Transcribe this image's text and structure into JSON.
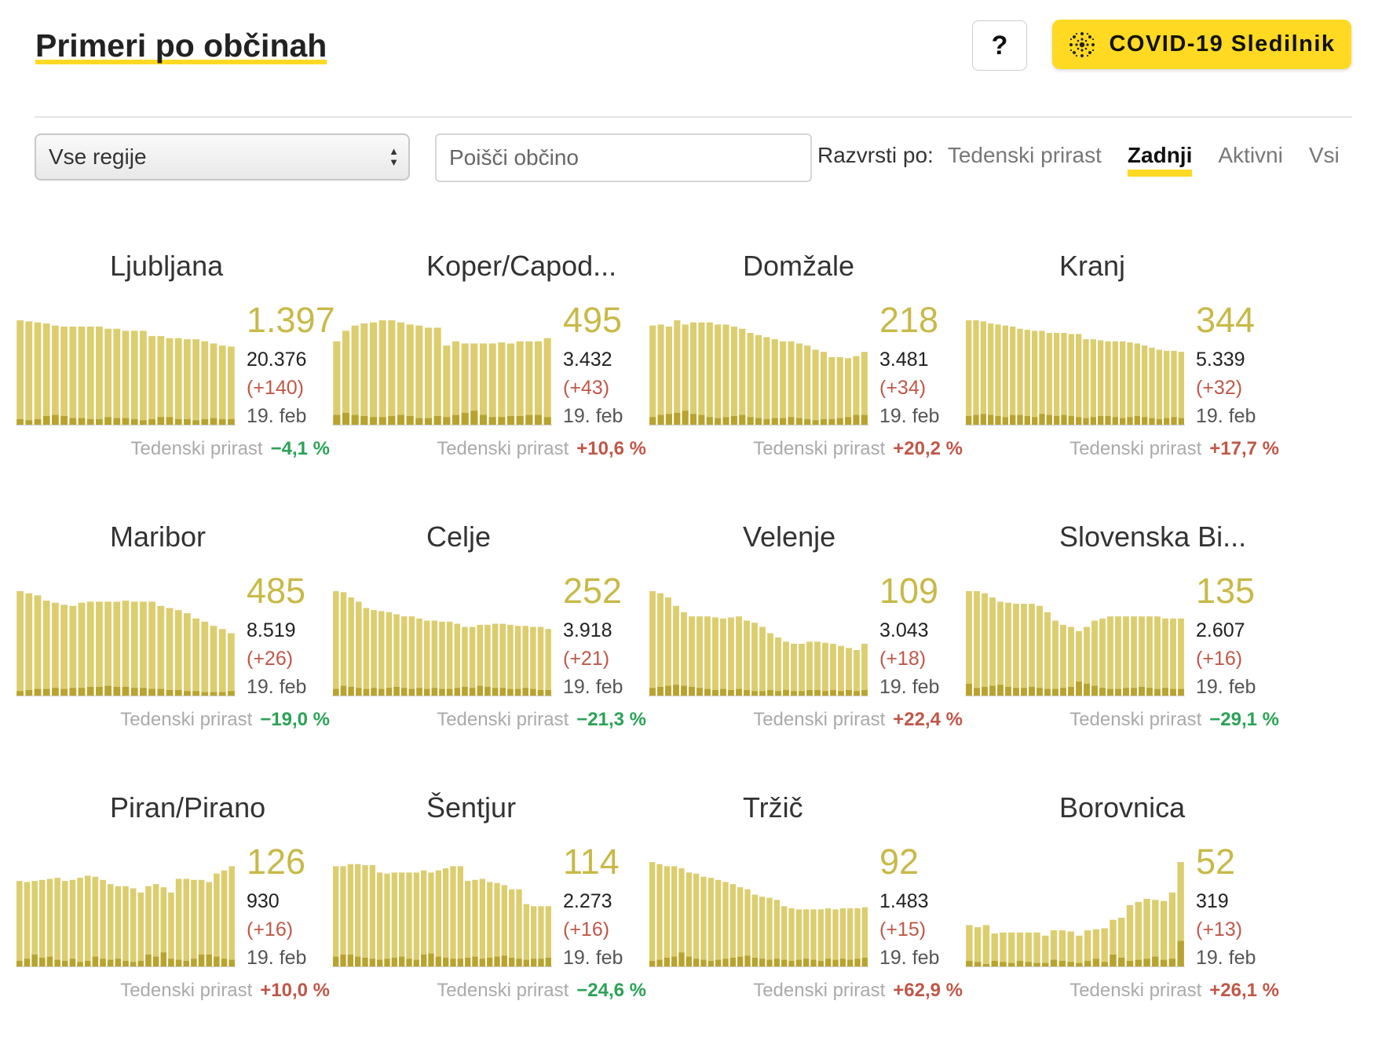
{
  "header": {
    "title": "Primeri po občinah",
    "help_label": "?",
    "brand_label": "COVID-19 Sledilnik",
    "brand_icon": "virus-dots-icon"
  },
  "filters": {
    "region_selected": "Vse regije",
    "search_placeholder": "Poišči občino",
    "sort_label": "Razvrsti po:",
    "sort_options": [
      "Tedenski prirast",
      "Zadnji",
      "Aktivni",
      "Vsi"
    ],
    "sort_active": "Zadnji"
  },
  "colors": {
    "accent": "#ffd922",
    "bar_active": "#dccd6f",
    "bar_new": "#b8a32f",
    "big_number": "#c8b948",
    "up": "#bf5747",
    "down": "#2aa355"
  },
  "growth_label": "Tedenski prirast",
  "cards": [
    {
      "name": "Ljubljana",
      "active": "1.397",
      "total": "20.376",
      "delta": "(+140)",
      "date": "19. feb",
      "growth": "−4,1 %",
      "trend": "down",
      "bars": [
        100,
        99,
        98,
        97,
        95,
        94,
        94,
        94,
        94,
        94,
        92,
        92,
        90,
        90,
        90,
        85,
        85,
        83,
        83,
        82,
        82,
        80,
        78,
        76,
        75
      ],
      "news": [
        6,
        5,
        6,
        9,
        10,
        9,
        7,
        7,
        6,
        6,
        8,
        7,
        7,
        6,
        5,
        6,
        8,
        8,
        6,
        6,
        5,
        6,
        7,
        6,
        6
      ]
    },
    {
      "name": "Koper/Capod...",
      "active": "495",
      "total": "3.432",
      "delta": "(+43)",
      "date": "19. feb",
      "growth": "+10,6 %",
      "trend": "up",
      "bars": [
        80,
        90,
        95,
        97,
        98,
        100,
        100,
        98,
        96,
        95,
        93,
        93,
        76,
        80,
        78,
        78,
        78,
        78,
        79,
        78,
        80,
        80,
        80,
        83
      ],
      "news": [
        10,
        12,
        10,
        9,
        8,
        8,
        9,
        10,
        9,
        7,
        7,
        9,
        8,
        10,
        12,
        14,
        10,
        8,
        8,
        9,
        9,
        10,
        10,
        8
      ]
    },
    {
      "name": "Domžale",
      "active": "218",
      "total": "3.481",
      "delta": "(+34)",
      "date": "19. feb",
      "growth": "+20,2 %",
      "trend": "up",
      "bars": [
        95,
        96,
        94,
        100,
        96,
        98,
        98,
        98,
        96,
        96,
        94,
        92,
        88,
        86,
        84,
        82,
        80,
        80,
        78,
        76,
        72,
        70,
        65,
        65,
        64,
        66,
        70
      ],
      "news": [
        8,
        10,
        11,
        12,
        14,
        11,
        10,
        8,
        7,
        8,
        9,
        10,
        8,
        7,
        6,
        7,
        7,
        8,
        7,
        6,
        5,
        6,
        6,
        7,
        8,
        10,
        10
      ]
    },
    {
      "name": "Kranj",
      "active": "344",
      "total": "5.339",
      "delta": "(+32)",
      "date": "19. feb",
      "growth": "+17,7 %",
      "trend": "up",
      "bars": [
        100,
        100,
        99,
        97,
        96,
        95,
        94,
        92,
        91,
        90,
        90,
        88,
        88,
        88,
        87,
        87,
        82,
        82,
        81,
        80,
        80,
        80,
        79,
        78,
        76,
        74,
        72,
        71,
        71,
        70
      ],
      "news": [
        9,
        10,
        11,
        10,
        9,
        8,
        10,
        10,
        9,
        8,
        11,
        10,
        9,
        10,
        9,
        8,
        7,
        8,
        9,
        9,
        8,
        7,
        8,
        9,
        8,
        7,
        6,
        7,
        8,
        7
      ]
    },
    {
      "name": "Maribor",
      "active": "485",
      "total": "8.519",
      "delta": "(+26)",
      "date": "19. feb",
      "growth": "−19,0 %",
      "trend": "down",
      "bars": [
        100,
        98,
        96,
        91,
        89,
        87,
        86,
        89,
        90,
        90,
        90,
        90,
        91,
        90,
        90,
        90,
        86,
        84,
        82,
        79,
        74,
        71,
        67,
        64,
        60
      ],
      "news": [
        5,
        6,
        7,
        7,
        8,
        7,
        8,
        8,
        9,
        9,
        10,
        9,
        9,
        8,
        8,
        7,
        7,
        6,
        6,
        5,
        5,
        4,
        4,
        4,
        5
      ]
    },
    {
      "name": "Celje",
      "active": "252",
      "total": "3.918",
      "delta": "(+21)",
      "date": "19. feb",
      "growth": "−21,3 %",
      "trend": "down",
      "bars": [
        100,
        99,
        94,
        90,
        84,
        82,
        81,
        80,
        78,
        76,
        76,
        74,
        72,
        72,
        71,
        71,
        69,
        66,
        66,
        68,
        68,
        69,
        69,
        68,
        67,
        67,
        66,
        66,
        64
      ],
      "news": [
        7,
        10,
        9,
        8,
        7,
        8,
        7,
        8,
        9,
        8,
        7,
        8,
        7,
        8,
        7,
        7,
        8,
        9,
        8,
        10,
        9,
        8,
        8,
        7,
        7,
        8,
        7,
        6,
        6
      ]
    },
    {
      "name": "Velenje",
      "active": "109",
      "total": "3.043",
      "delta": "(+18)",
      "date": "19. feb",
      "growth": "+22,4 %",
      "trend": "up",
      "bars": [
        100,
        98,
        94,
        86,
        80,
        76,
        76,
        76,
        75,
        74,
        75,
        76,
        72,
        70,
        66,
        60,
        56,
        52,
        50,
        50,
        52,
        52,
        51,
        50,
        48,
        46,
        44,
        50
      ],
      "news": [
        8,
        9,
        10,
        11,
        10,
        9,
        8,
        7,
        6,
        7,
        6,
        7,
        6,
        5,
        5,
        6,
        5,
        6,
        5,
        5,
        6,
        6,
        5,
        6,
        5,
        6,
        5,
        6
      ]
    },
    {
      "name": "Slovenska Bi...",
      "active": "135",
      "total": "2.607",
      "delta": "(+16)",
      "date": "19. feb",
      "growth": "−29,1 %",
      "trend": "down",
      "bars": [
        100,
        100,
        98,
        94,
        90,
        89,
        88,
        88,
        88,
        86,
        80,
        72,
        68,
        66,
        62,
        66,
        72,
        74,
        76,
        76,
        76,
        76,
        76,
        76,
        76,
        74,
        74,
        74
      ],
      "news": [
        12,
        8,
        9,
        10,
        11,
        9,
        8,
        8,
        9,
        8,
        7,
        7,
        8,
        9,
        14,
        12,
        10,
        8,
        7,
        7,
        8,
        8,
        9,
        8,
        7,
        8,
        7,
        7
      ]
    },
    {
      "name": "Piran/Pirano",
      "active": "126",
      "total": "930",
      "delta": "(+16)",
      "date": "19. feb",
      "growth": "+10,0 %",
      "trend": "up",
      "bars": [
        82,
        81,
        82,
        83,
        84,
        85,
        82,
        83,
        85,
        87,
        86,
        83,
        79,
        77,
        77,
        75,
        71,
        77,
        79,
        76,
        71,
        84,
        84,
        83,
        83,
        81,
        89,
        92,
        96
      ],
      "news": [
        6,
        8,
        12,
        9,
        10,
        7,
        6,
        8,
        5,
        6,
        10,
        8,
        7,
        8,
        6,
        5,
        6,
        12,
        10,
        14,
        8,
        7,
        6,
        8,
        12,
        12,
        10,
        8,
        7
      ]
    },
    {
      "name": "Šentjur",
      "active": "114",
      "total": "2.273",
      "delta": "(+16)",
      "date": "19. feb",
      "growth": "−24,6 %",
      "trend": "down",
      "bars": [
        96,
        96,
        98,
        98,
        97,
        97,
        90,
        89,
        90,
        90,
        90,
        90,
        92,
        90,
        92,
        94,
        96,
        96,
        82,
        83,
        84,
        81,
        80,
        78,
        74,
        74,
        60,
        58,
        58,
        58
      ],
      "news": [
        10,
        12,
        12,
        10,
        9,
        8,
        7,
        8,
        9,
        10,
        8,
        7,
        12,
        13,
        10,
        9,
        8,
        8,
        9,
        10,
        8,
        9,
        10,
        11,
        9,
        8,
        7,
        8,
        8,
        9
      ]
    },
    {
      "name": "Tržič",
      "active": "92",
      "total": "1.483",
      "delta": "(+15)",
      "date": "19. feb",
      "growth": "+62,9 %",
      "trend": "up",
      "bars": [
        100,
        98,
        96,
        96,
        94,
        90,
        89,
        86,
        85,
        83,
        81,
        79,
        76,
        74,
        69,
        67,
        66,
        64,
        58,
        56,
        55,
        55,
        55,
        55,
        56,
        55,
        56,
        56,
        56,
        57
      ],
      "news": [
        6,
        7,
        9,
        10,
        14,
        10,
        8,
        7,
        6,
        7,
        8,
        9,
        10,
        11,
        9,
        8,
        7,
        8,
        7,
        6,
        7,
        8,
        7,
        6,
        8,
        7,
        8,
        7,
        8,
        9
      ]
    },
    {
      "name": "Borovnica",
      "active": "52",
      "total": "319",
      "delta": "(+13)",
      "date": "19. feb",
      "growth": "+26,1 %",
      "trend": "up",
      "bars": [
        40,
        38,
        40,
        32,
        33,
        33,
        33,
        33,
        33,
        30,
        35,
        35,
        34,
        30,
        35,
        36,
        37,
        45,
        47,
        59,
        62,
        65,
        64,
        63,
        71,
        100
      ],
      "news": [
        6,
        5,
        3,
        6,
        5,
        4,
        6,
        5,
        4,
        4,
        7,
        6,
        5,
        4,
        6,
        8,
        5,
        12,
        9,
        6,
        7,
        8,
        10,
        7,
        8,
        25
      ]
    }
  ]
}
